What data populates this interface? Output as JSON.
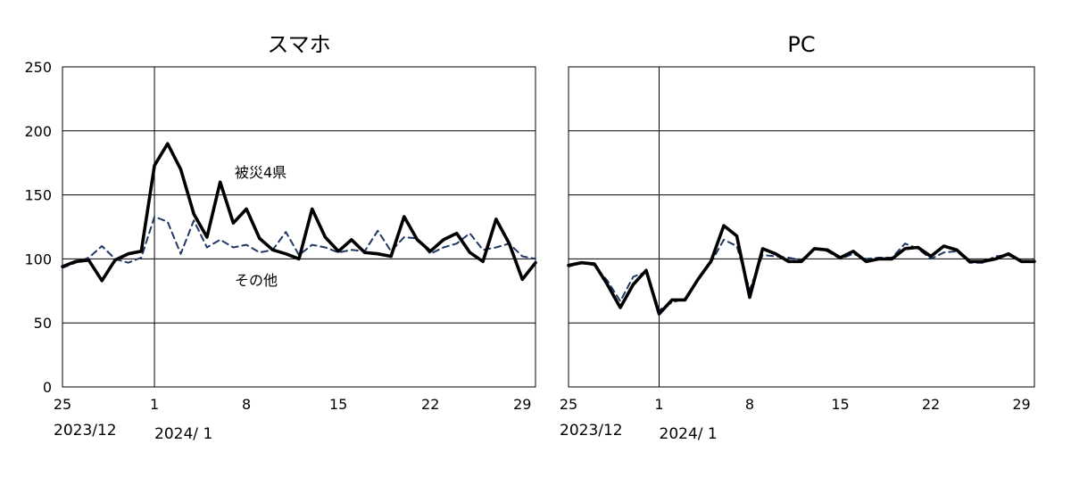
{
  "chart_data": [
    {
      "type": "line",
      "title": "スマホ",
      "xlabel": "",
      "ylabel": "",
      "ylim": [
        0,
        250
      ],
      "yticks": [
        0,
        50,
        100,
        150,
        200,
        250
      ],
      "x_tick_labels": [
        "25",
        "1",
        "8",
        "15",
        "22",
        "29"
      ],
      "year_labels": [
        "2023/12",
        "2024/ 1"
      ],
      "x_start_date": "2023-12-25",
      "x_end_date": "2024-01-30",
      "grid": "horizontal",
      "series": [
        {
          "name": "被災4県",
          "style": "solid",
          "color": "#000000",
          "values": [
            94,
            98,
            99,
            83,
            99,
            104,
            106,
            173,
            190,
            170,
            135,
            117,
            160,
            128,
            139,
            116,
            107,
            104,
            100,
            139,
            117,
            106,
            115,
            105,
            104,
            102,
            133,
            115,
            106,
            115,
            120,
            105,
            98,
            131,
            112,
            84,
            97
          ]
        },
        {
          "name": "その他",
          "style": "dashed",
          "color": "#1f3864",
          "values": [
            93,
            97,
            101,
            110,
            100,
            97,
            101,
            133,
            129,
            104,
            130,
            109,
            115,
            109,
            111,
            105,
            107,
            121,
            103,
            111,
            109,
            105,
            107,
            106,
            122,
            106,
            117,
            116,
            104,
            109,
            112,
            120,
            107,
            109,
            112,
            102,
            100
          ]
        }
      ]
    },
    {
      "type": "line",
      "title": "PC",
      "xlabel": "",
      "ylabel": "",
      "ylim": [
        0,
        250
      ],
      "yticks": [
        0,
        50,
        100,
        150,
        200,
        250
      ],
      "x_tick_labels": [
        "25",
        "1",
        "8",
        "15",
        "22",
        "29"
      ],
      "year_labels": [
        "2023/12",
        "2024/ 1"
      ],
      "x_start_date": "2023-12-25",
      "x_end_date": "2024-01-30",
      "grid": "horizontal",
      "series": [
        {
          "name": "被災4県",
          "style": "solid",
          "color": "#000000",
          "values": [
            95,
            97,
            96,
            80,
            62,
            80,
            91,
            57,
            68,
            68,
            84,
            98,
            126,
            118,
            70,
            108,
            104,
            98,
            98,
            108,
            107,
            101,
            106,
            98,
            100,
            100,
            108,
            109,
            102,
            110,
            107,
            98,
            98,
            100,
            104,
            98,
            98
          ]
        },
        {
          "name": "その他",
          "style": "dashed",
          "color": "#1f3864",
          "values": [
            94,
            97,
            95,
            83,
            67,
            86,
            90,
            60,
            66,
            69,
            84,
            97,
            115,
            110,
            76,
            103,
            102,
            101,
            99,
            108,
            106,
            100,
            104,
            100,
            101,
            101,
            112,
            108,
            100,
            105,
            106,
            97,
            97,
            102,
            103,
            98,
            98
          ]
        }
      ]
    }
  ]
}
